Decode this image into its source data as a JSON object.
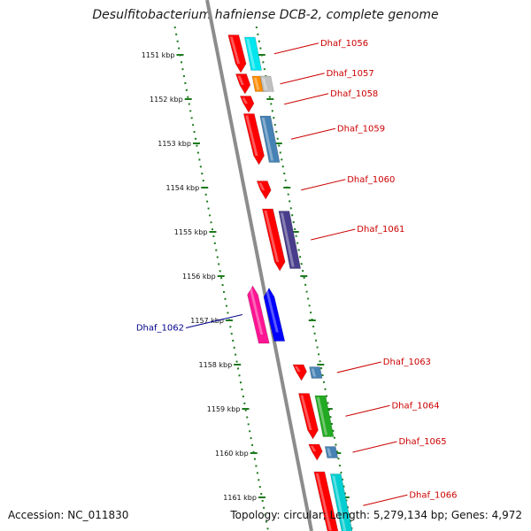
{
  "header": {
    "title": "Desulfitobacterium hafniense DCB-2, complete genome"
  },
  "footer": {
    "accession": "Accession: NC_011830",
    "topology": "Topology: circular; Length: 5,279,134 bp; Genes: 4,972"
  },
  "scale": {
    "unit": "kbp",
    "ticks": [
      {
        "kbp": 1151,
        "label": "1151 kbp"
      },
      {
        "kbp": 1152,
        "label": "1152 kbp"
      },
      {
        "kbp": 1153,
        "label": "1153 kbp"
      },
      {
        "kbp": 1154,
        "label": "1154 kbp"
      },
      {
        "kbp": 1155,
        "label": "1155 kbp"
      },
      {
        "kbp": 1156,
        "label": "1156 kbp"
      },
      {
        "kbp": 1157,
        "label": "1157 kbp"
      },
      {
        "kbp": 1158,
        "label": "1158 kbp"
      },
      {
        "kbp": 1159,
        "label": "1159 kbp"
      },
      {
        "kbp": 1160,
        "label": "1160 kbp"
      },
      {
        "kbp": 1161,
        "label": "1161 kbp"
      }
    ]
  },
  "colors": {
    "backbone": "#8c8c8c",
    "tick": "#1e7a1e",
    "forward_label": "#cc0000",
    "reverse_label": "#00008b",
    "cds": "#ff0000"
  },
  "genes": [
    {
      "name": "Dhaf_1056",
      "strand": "+",
      "start_kbp": 1150.55,
      "end_kbp": 1151.4,
      "color": "#ff0000"
    },
    {
      "name": "Dhaf_1057",
      "strand": "+",
      "start_kbp": 1151.43,
      "end_kbp": 1151.88,
      "color": "#ff0000"
    },
    {
      "name": "Dhaf_1058",
      "strand": "+",
      "start_kbp": 1151.93,
      "end_kbp": 1152.3,
      "color": "#ff0000"
    },
    {
      "name": "Dhaf_1059",
      "strand": "+",
      "start_kbp": 1152.33,
      "end_kbp": 1153.48,
      "color": "#ff0000"
    },
    {
      "name": "Dhaf_1060",
      "strand": "+",
      "start_kbp": 1153.85,
      "end_kbp": 1154.26,
      "color": "#ff0000"
    },
    {
      "name": "Dhaf_1061",
      "strand": "+",
      "start_kbp": 1154.48,
      "end_kbp": 1155.88,
      "color": "#ff0000"
    },
    {
      "name": "Dhaf_1062",
      "strand": "-",
      "start_kbp": 1156.22,
      "end_kbp": 1157.52,
      "color": "#ff1493"
    },
    {
      "name": "Dhaf_1063",
      "strand": "+",
      "start_kbp": 1158.0,
      "end_kbp": 1158.36,
      "color": "#ff0000"
    },
    {
      "name": "Dhaf_1064",
      "strand": "+",
      "start_kbp": 1158.65,
      "end_kbp": 1159.68,
      "color": "#ff0000"
    },
    {
      "name": "Dhaf_1065",
      "strand": "+",
      "start_kbp": 1159.8,
      "end_kbp": 1160.16,
      "color": "#ff0000"
    },
    {
      "name": "Dhaf_1066",
      "strand": "+",
      "start_kbp": 1160.42,
      "end_kbp": 1161.95,
      "color": "#ff0000"
    }
  ],
  "feature_bars": [
    {
      "gene": "Dhaf_1056",
      "color": "#00e5ee"
    },
    {
      "gene": "Dhaf_1057",
      "color": "#ff8c00"
    },
    {
      "gene": "Dhaf_1057",
      "color": "#c0c0c0"
    },
    {
      "gene": "Dhaf_1059",
      "color": "#4682b4"
    },
    {
      "gene": "Dhaf_1061",
      "color": "#483d8b"
    },
    {
      "gene": "Dhaf_1062",
      "color": "#0000ff"
    },
    {
      "gene": "Dhaf_1063",
      "color": "#4682b4"
    },
    {
      "gene": "Dhaf_1064",
      "color": "#22aa22"
    },
    {
      "gene": "Dhaf_1065",
      "color": "#4682b4"
    },
    {
      "gene": "Dhaf_1066",
      "color": "#00ced1"
    }
  ]
}
